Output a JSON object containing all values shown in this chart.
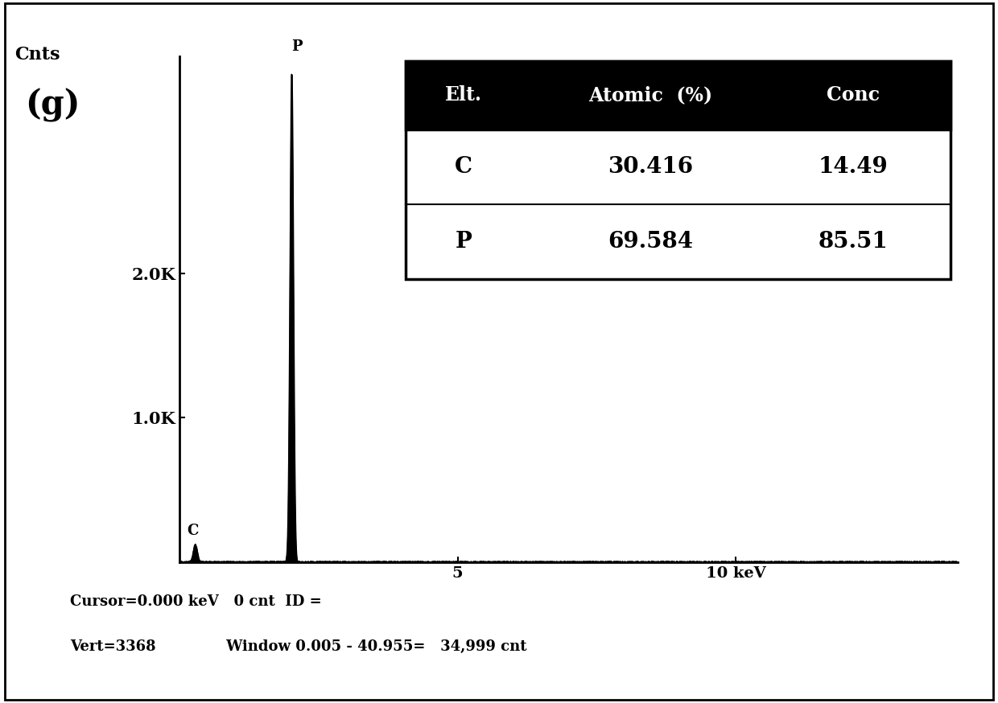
{
  "title_label": "(g)",
  "ylabel": "Cnts",
  "ytick_labels": [
    "2.0K",
    "1.0K"
  ],
  "ytick_positions": [
    2000,
    1000
  ],
  "ylim": [
    0,
    3500
  ],
  "xlim": [
    0,
    14
  ],
  "peak_P_x": 2.013,
  "peak_P_height": 3368,
  "peak_C_x": 0.28,
  "peak_C_height": 120,
  "peak_C_label": "C",
  "peak_P_label": "P",
  "table_header": [
    "Elt.",
    "Atomic  (%)",
    "Conc"
  ],
  "table_rows": [
    [
      "C",
      "30.416",
      "14.49"
    ],
    [
      "P",
      "69.584",
      "85.51"
    ]
  ],
  "table_header_bg": "#000000",
  "table_header_fg": "#ffffff",
  "bottom_text_line1": "Cursor=0.000 keV   0 cnt  ID =",
  "bottom_text_line2": "Vert=3368              Window 0.005 - 40.955=   34,999 cnt",
  "bg_color": "#ffffff",
  "plot_bg": "#ffffff",
  "line_color": "#000000",
  "noise_amplitude": 8,
  "noise_seed": 42
}
